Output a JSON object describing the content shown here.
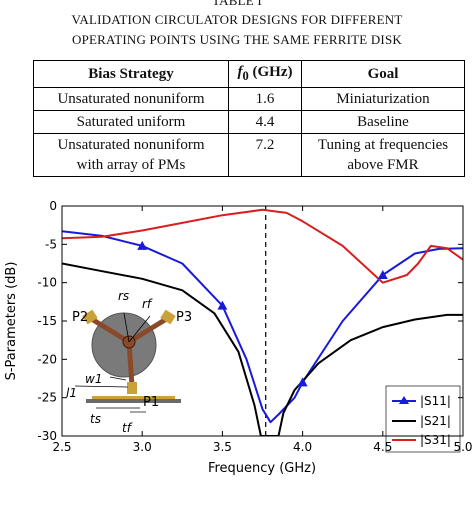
{
  "table": {
    "label": "TABLE I",
    "caption_line1": "VALIDATION CIRCULATOR DESIGNS FOR DIFFERENT",
    "caption_line2": "OPERATING POINTS USING THE SAME FERRITE DISK",
    "headers": [
      "Bias Strategy",
      "f0 (GHz)",
      "Goal"
    ],
    "rows": [
      [
        "Unsaturated nonuniform",
        "1.6",
        "Miniaturization"
      ],
      [
        "Saturated uniform",
        "4.4",
        "Baseline"
      ],
      [
        "Unsaturated nonuniform with array of PMs",
        "7.2",
        "Tuning at frequencies above FMR"
      ]
    ],
    "row3_col1_line1": "Unsaturated nonuniform",
    "row3_col1_line2": "with array of PMs",
    "row3_col3_line1": "Tuning at frequencies",
    "row3_col3_line2": "above FMR"
  },
  "inset": {
    "labels": [
      "P2",
      "P3",
      "P1",
      "rs",
      "rf",
      "w1",
      "l1",
      "ts",
      "tf"
    ]
  },
  "chart_data": {
    "type": "line",
    "xlabel": "Frequency (GHz)",
    "ylabel": "S-Parameters (dB)",
    "xlim": [
      2.5,
      5.0
    ],
    "ylim": [
      -30,
      0
    ],
    "xticks": [
      2.5,
      3.0,
      3.5,
      4.0,
      4.5,
      5.0
    ],
    "xtick_labels": [
      "2.5",
      "3.0",
      "3.5",
      "4.0",
      "4.5",
      "5.0"
    ],
    "yticks": [
      0,
      -5,
      -10,
      -15,
      -20,
      -25,
      -30
    ],
    "ytick_labels": [
      "0",
      "-5",
      "-10",
      "-15",
      "-20",
      "-25",
      "-30"
    ],
    "vline_x": 3.77,
    "legend_position": "lower-right",
    "series": [
      {
        "name": "|S11|",
        "color": "#1a1adc",
        "marker": "triangle",
        "x": [
          2.5,
          2.75,
          3.0,
          3.25,
          3.5,
          3.65,
          3.75,
          3.8,
          3.85,
          3.95,
          4.0,
          4.25,
          4.5,
          4.7,
          4.85,
          5.0
        ],
        "y": [
          -3.3,
          -3.9,
          -5.2,
          -7.5,
          -13.0,
          -20.0,
          -26.5,
          -28.2,
          -27.2,
          -25.0,
          -23.0,
          -15.0,
          -9.0,
          -6.2,
          -5.6,
          -5.5
        ],
        "markers_x": [
          3.0,
          3.5,
          4.0,
          4.5
        ]
      },
      {
        "name": "|S21|",
        "color": "#000000",
        "marker": "none",
        "x": [
          2.5,
          2.75,
          3.0,
          3.25,
          3.45,
          3.6,
          3.7,
          3.74,
          3.85,
          3.88,
          3.95,
          4.1,
          4.3,
          4.5,
          4.7,
          4.9,
          5.0
        ],
        "y": [
          -7.5,
          -8.5,
          -9.5,
          -11.0,
          -14.0,
          -19.0,
          -26.0,
          -30.0,
          -30.0,
          -27.0,
          -24.0,
          -20.5,
          -17.5,
          -15.8,
          -14.8,
          -14.2,
          -14.2
        ]
      },
      {
        "name": "|S31|",
        "color": "#d81e1e",
        "marker": "none",
        "x": [
          2.5,
          2.75,
          3.0,
          3.25,
          3.5,
          3.75,
          3.9,
          4.0,
          4.25,
          4.5,
          4.65,
          4.72,
          4.8,
          4.9,
          5.0
        ],
        "y": [
          -4.2,
          -4.0,
          -3.2,
          -2.2,
          -1.2,
          -0.5,
          -0.9,
          -2.0,
          -5.2,
          -10.0,
          -9.0,
          -7.5,
          -5.2,
          -5.5,
          -7.0
        ]
      }
    ]
  }
}
